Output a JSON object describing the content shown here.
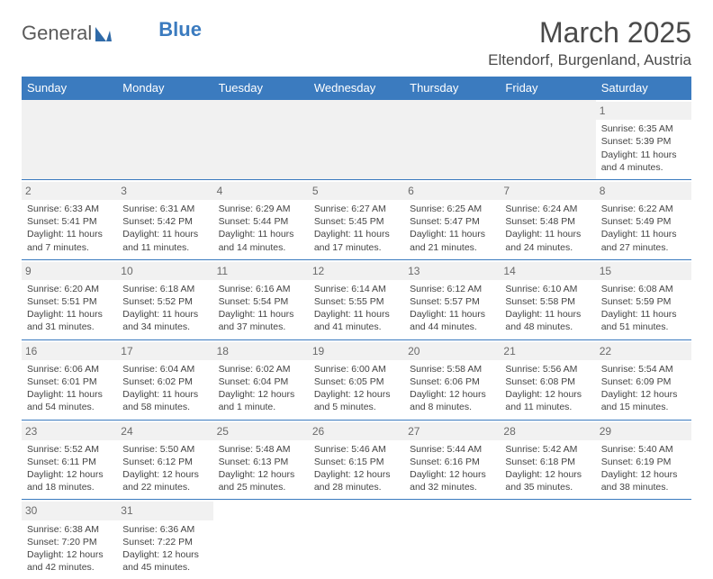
{
  "logo": {
    "text1": "General",
    "text2": "Blue"
  },
  "title": "March 2025",
  "location": "Eltendorf, Burgenland, Austria",
  "colors": {
    "header_bg": "#3b7bbf",
    "header_fg": "#ffffff",
    "daynum_bg": "#f1f1f1",
    "cell_border": "#3b7bbf"
  },
  "typography": {
    "title_fontsize": 32,
    "location_fontsize": 17,
    "th_fontsize": 13,
    "cell_fontsize": 10.5
  },
  "weekdays": [
    "Sunday",
    "Monday",
    "Tuesday",
    "Wednesday",
    "Thursday",
    "Friday",
    "Saturday"
  ],
  "weeks": [
    [
      null,
      null,
      null,
      null,
      null,
      null,
      {
        "n": "1",
        "sunrise": "Sunrise: 6:35 AM",
        "sunset": "Sunset: 5:39 PM",
        "daylight": "Daylight: 11 hours and 4 minutes."
      }
    ],
    [
      {
        "n": "2",
        "sunrise": "Sunrise: 6:33 AM",
        "sunset": "Sunset: 5:41 PM",
        "daylight": "Daylight: 11 hours and 7 minutes."
      },
      {
        "n": "3",
        "sunrise": "Sunrise: 6:31 AM",
        "sunset": "Sunset: 5:42 PM",
        "daylight": "Daylight: 11 hours and 11 minutes."
      },
      {
        "n": "4",
        "sunrise": "Sunrise: 6:29 AM",
        "sunset": "Sunset: 5:44 PM",
        "daylight": "Daylight: 11 hours and 14 minutes."
      },
      {
        "n": "5",
        "sunrise": "Sunrise: 6:27 AM",
        "sunset": "Sunset: 5:45 PM",
        "daylight": "Daylight: 11 hours and 17 minutes."
      },
      {
        "n": "6",
        "sunrise": "Sunrise: 6:25 AM",
        "sunset": "Sunset: 5:47 PM",
        "daylight": "Daylight: 11 hours and 21 minutes."
      },
      {
        "n": "7",
        "sunrise": "Sunrise: 6:24 AM",
        "sunset": "Sunset: 5:48 PM",
        "daylight": "Daylight: 11 hours and 24 minutes."
      },
      {
        "n": "8",
        "sunrise": "Sunrise: 6:22 AM",
        "sunset": "Sunset: 5:49 PM",
        "daylight": "Daylight: 11 hours and 27 minutes."
      }
    ],
    [
      {
        "n": "9",
        "sunrise": "Sunrise: 6:20 AM",
        "sunset": "Sunset: 5:51 PM",
        "daylight": "Daylight: 11 hours and 31 minutes."
      },
      {
        "n": "10",
        "sunrise": "Sunrise: 6:18 AM",
        "sunset": "Sunset: 5:52 PM",
        "daylight": "Daylight: 11 hours and 34 minutes."
      },
      {
        "n": "11",
        "sunrise": "Sunrise: 6:16 AM",
        "sunset": "Sunset: 5:54 PM",
        "daylight": "Daylight: 11 hours and 37 minutes."
      },
      {
        "n": "12",
        "sunrise": "Sunrise: 6:14 AM",
        "sunset": "Sunset: 5:55 PM",
        "daylight": "Daylight: 11 hours and 41 minutes."
      },
      {
        "n": "13",
        "sunrise": "Sunrise: 6:12 AM",
        "sunset": "Sunset: 5:57 PM",
        "daylight": "Daylight: 11 hours and 44 minutes."
      },
      {
        "n": "14",
        "sunrise": "Sunrise: 6:10 AM",
        "sunset": "Sunset: 5:58 PM",
        "daylight": "Daylight: 11 hours and 48 minutes."
      },
      {
        "n": "15",
        "sunrise": "Sunrise: 6:08 AM",
        "sunset": "Sunset: 5:59 PM",
        "daylight": "Daylight: 11 hours and 51 minutes."
      }
    ],
    [
      {
        "n": "16",
        "sunrise": "Sunrise: 6:06 AM",
        "sunset": "Sunset: 6:01 PM",
        "daylight": "Daylight: 11 hours and 54 minutes."
      },
      {
        "n": "17",
        "sunrise": "Sunrise: 6:04 AM",
        "sunset": "Sunset: 6:02 PM",
        "daylight": "Daylight: 11 hours and 58 minutes."
      },
      {
        "n": "18",
        "sunrise": "Sunrise: 6:02 AM",
        "sunset": "Sunset: 6:04 PM",
        "daylight": "Daylight: 12 hours and 1 minute."
      },
      {
        "n": "19",
        "sunrise": "Sunrise: 6:00 AM",
        "sunset": "Sunset: 6:05 PM",
        "daylight": "Daylight: 12 hours and 5 minutes."
      },
      {
        "n": "20",
        "sunrise": "Sunrise: 5:58 AM",
        "sunset": "Sunset: 6:06 PM",
        "daylight": "Daylight: 12 hours and 8 minutes."
      },
      {
        "n": "21",
        "sunrise": "Sunrise: 5:56 AM",
        "sunset": "Sunset: 6:08 PM",
        "daylight": "Daylight: 12 hours and 11 minutes."
      },
      {
        "n": "22",
        "sunrise": "Sunrise: 5:54 AM",
        "sunset": "Sunset: 6:09 PM",
        "daylight": "Daylight: 12 hours and 15 minutes."
      }
    ],
    [
      {
        "n": "23",
        "sunrise": "Sunrise: 5:52 AM",
        "sunset": "Sunset: 6:11 PM",
        "daylight": "Daylight: 12 hours and 18 minutes."
      },
      {
        "n": "24",
        "sunrise": "Sunrise: 5:50 AM",
        "sunset": "Sunset: 6:12 PM",
        "daylight": "Daylight: 12 hours and 22 minutes."
      },
      {
        "n": "25",
        "sunrise": "Sunrise: 5:48 AM",
        "sunset": "Sunset: 6:13 PM",
        "daylight": "Daylight: 12 hours and 25 minutes."
      },
      {
        "n": "26",
        "sunrise": "Sunrise: 5:46 AM",
        "sunset": "Sunset: 6:15 PM",
        "daylight": "Daylight: 12 hours and 28 minutes."
      },
      {
        "n": "27",
        "sunrise": "Sunrise: 5:44 AM",
        "sunset": "Sunset: 6:16 PM",
        "daylight": "Daylight: 12 hours and 32 minutes."
      },
      {
        "n": "28",
        "sunrise": "Sunrise: 5:42 AM",
        "sunset": "Sunset: 6:18 PM",
        "daylight": "Daylight: 12 hours and 35 minutes."
      },
      {
        "n": "29",
        "sunrise": "Sunrise: 5:40 AM",
        "sunset": "Sunset: 6:19 PM",
        "daylight": "Daylight: 12 hours and 38 minutes."
      }
    ],
    [
      {
        "n": "30",
        "sunrise": "Sunrise: 6:38 AM",
        "sunset": "Sunset: 7:20 PM",
        "daylight": "Daylight: 12 hours and 42 minutes."
      },
      {
        "n": "31",
        "sunrise": "Sunrise: 6:36 AM",
        "sunset": "Sunset: 7:22 PM",
        "daylight": "Daylight: 12 hours and 45 minutes."
      },
      null,
      null,
      null,
      null,
      null
    ]
  ]
}
